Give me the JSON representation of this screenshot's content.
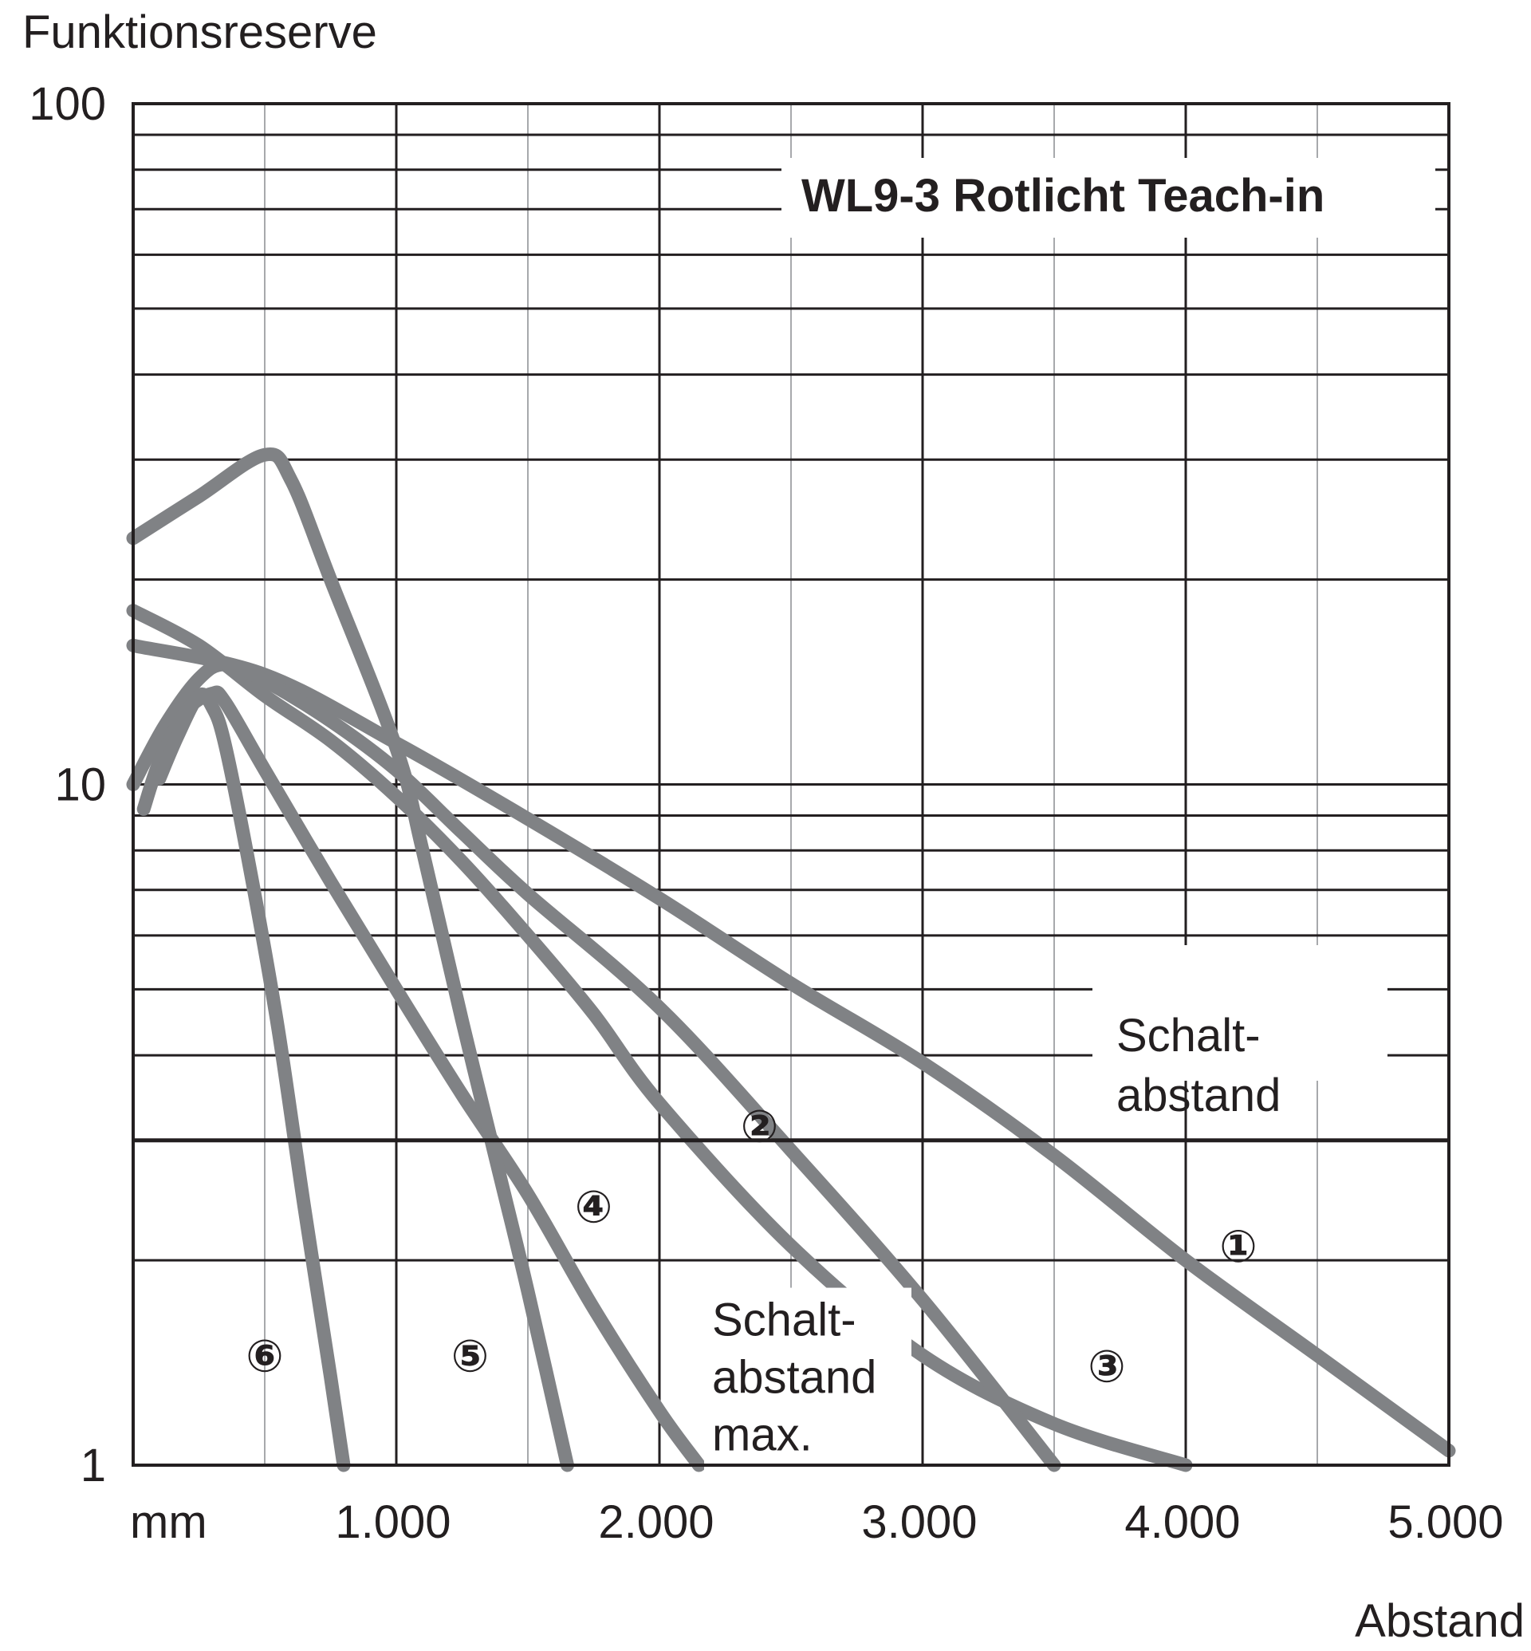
{
  "chart_data": {
    "type": "line",
    "title": "WL9-3 Rotlicht Teach-in",
    "ylabel": "Funktionsreserve",
    "xlabel": "Abstand",
    "x_unit": "mm",
    "x_scale": "linear",
    "y_scale": "log",
    "xlim": [
      0,
      5000
    ],
    "ylim": [
      1,
      100
    ],
    "x_ticks": [
      {
        "value": 1000,
        "label": "1.000"
      },
      {
        "value": 2000,
        "label": "2.000"
      },
      {
        "value": 3000,
        "label": "3.000"
      },
      {
        "value": 4000,
        "label": "4.000"
      },
      {
        "value": 5000,
        "label": "5.000"
      }
    ],
    "y_ticks": [
      {
        "value": 1,
        "label": "1"
      },
      {
        "value": 10,
        "label": "10"
      },
      {
        "value": 100,
        "label": "100"
      }
    ],
    "grid": true,
    "threshold": {
      "value": 3.0,
      "label_line1": "Schalt-",
      "label_line2": "abstand"
    },
    "annotations": [
      {
        "id": "schaltabstand-max",
        "lines": [
          "Schalt-",
          "abstand",
          "max."
        ],
        "x": 2200,
        "y": 1.55
      }
    ],
    "series": [
      {
        "marker": "①",
        "marker_x": 4200,
        "marker_y": 2.1,
        "x": [
          0,
          500,
          1000,
          1500,
          2000,
          2500,
          3000,
          3500,
          4000,
          4500,
          5000
        ],
        "y": [
          16,
          14.5,
          11.5,
          8.9,
          6.8,
          5.1,
          3.9,
          2.85,
          2.0,
          1.45,
          1.05
        ]
      },
      {
        "marker": "②",
        "marker_x": 2380,
        "marker_y": 3.15,
        "x": [
          0,
          250,
          500,
          750,
          1000,
          1250,
          1500,
          1750,
          2000,
          2500,
          3000,
          3500,
          4000
        ],
        "y": [
          18,
          16,
          13.5,
          11.6,
          9.6,
          7.7,
          6.0,
          4.6,
          3.4,
          2.1,
          1.45,
          1.15,
          1.0
        ]
      },
      {
        "marker": "③",
        "marker_x": 3700,
        "marker_y": 1.4,
        "x": [
          0,
          120,
          250,
          350,
          500,
          750,
          1000,
          1250,
          1500,
          2000,
          2500,
          3000,
          3500
        ],
        "y": [
          10,
          12.2,
          14.3,
          15.0,
          14.2,
          12.4,
          10.5,
          8.5,
          6.9,
          4.7,
          2.9,
          1.75,
          1.0
        ]
      },
      {
        "marker": "④",
        "marker_x": 1750,
        "marker_y": 2.4,
        "x": [
          40,
          100,
          200,
          300,
          350,
          500,
          750,
          1000,
          1250,
          1500,
          1750,
          2000,
          2150
        ],
        "y": [
          9.2,
          10.8,
          12.8,
          13.6,
          13.2,
          10.5,
          7.2,
          5.0,
          3.5,
          2.5,
          1.7,
          1.2,
          1.0
        ]
      },
      {
        "marker": "⑤",
        "marker_x": 1280,
        "marker_y": 1.45,
        "x": [
          0,
          250,
          500,
          600,
          750,
          1000,
          1100,
          1250,
          1400,
          1500,
          1650
        ],
        "y": [
          23,
          26.5,
          30.5,
          28,
          20,
          11.3,
          8.0,
          4.5,
          2.6,
          1.8,
          1.0
        ]
      },
      {
        "marker": "⑥",
        "marker_x": 500,
        "marker_y": 1.45,
        "x": [
          100,
          170,
          250,
          300,
          350,
          450,
          550,
          650,
          750,
          800
        ],
        "y": [
          10.2,
          11.8,
          13.5,
          13.0,
          11.4,
          7.3,
          4.4,
          2.4,
          1.35,
          1.0
        ]
      }
    ]
  }
}
